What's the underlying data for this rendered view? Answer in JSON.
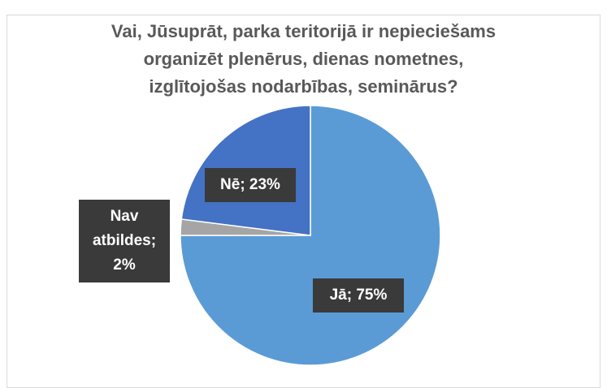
{
  "chart_data": {
    "type": "pie",
    "title": "Vai, Jūsuprāt, parka teritorijā ir nepieciešams\norganizēt plenērus, dienas nometnes,\nizglītojošas nodarbības, seminārus?",
    "values": [
      75,
      2,
      23
    ],
    "value_labels": [
      "Jā; 75%",
      "Nav atbildes; 2%",
      "Nē; 23%"
    ],
    "colors": [
      "#5b9bd5",
      "#a5a5a5",
      "#4472c4"
    ]
  }
}
